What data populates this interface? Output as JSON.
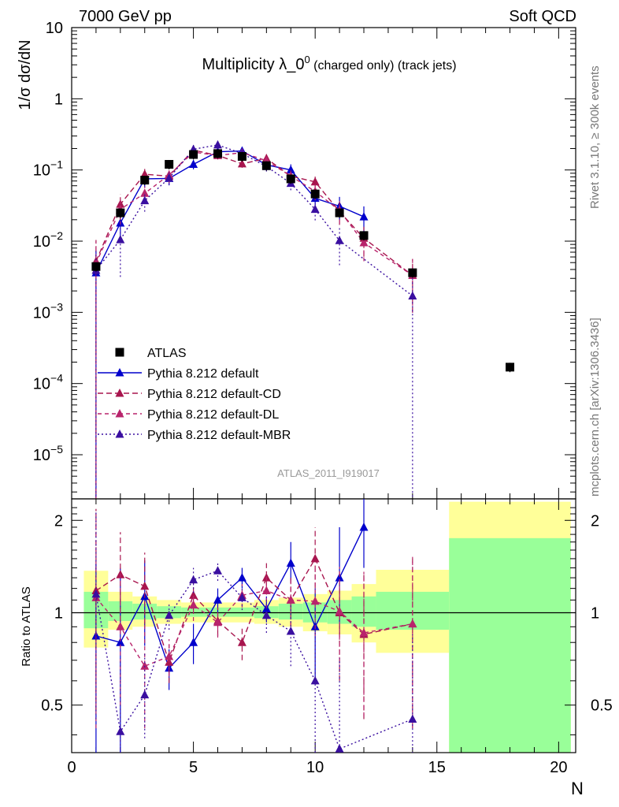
{
  "header": {
    "left": "7000 GeV pp",
    "right": "Soft QCD"
  },
  "side_labels": {
    "rivet": "Rivet 3.1.10, ≥ 300k events",
    "source": "mcplots.cern.ch [arXiv:1306.3436]"
  },
  "reference": "ATLAS_2011_I919017",
  "colors": {
    "default": "#0000cc",
    "cd": "#a8154e",
    "dl": "#b8246c",
    "mbr": "#3a0fa0",
    "band_inner": "#99ff99",
    "band_outer": "#ffff99"
  },
  "chart_data": [
    {
      "type": "line",
      "title_main": "Multiplicity λ_0",
      "title_sup": "0",
      "title_rest": " (charged only) (track jets)",
      "xlabel": "N",
      "ylabel": "1/σ dσ/dN",
      "yscale": "log",
      "xlim": [
        0,
        20.7
      ],
      "ylim": [
        2.4e-06,
        10
      ],
      "x_ticks": [
        0,
        5,
        10,
        15,
        20
      ],
      "y_ticks": [
        {
          "value": 1e-05,
          "base": "10",
          "exp": "−5"
        },
        {
          "value": 0.0001,
          "base": "10",
          "exp": "−4"
        },
        {
          "value": 0.001,
          "base": "10",
          "exp": "−3"
        },
        {
          "value": 0.01,
          "base": "10",
          "exp": "−2"
        },
        {
          "value": 0.1,
          "base": "10",
          "exp": "−1"
        },
        {
          "value": 1,
          "base": "1",
          "exp": ""
        },
        {
          "value": 10,
          "base": "10",
          "exp": ""
        }
      ],
      "legend": [
        {
          "label": "ATLAS",
          "series": "atlas"
        },
        {
          "label": "Pythia 8.212 default",
          "series": "default"
        },
        {
          "label": "Pythia 8.212 default-CD",
          "series": "cd"
        },
        {
          "label": "Pythia 8.212 default-DL",
          "series": "dl"
        },
        {
          "label": "Pythia 8.212 default-MBR",
          "series": "mbr"
        }
      ],
      "atlas": {
        "name": "ATLAS",
        "x": [
          1,
          2,
          3,
          4,
          5,
          6,
          7,
          8,
          9,
          10,
          11,
          12,
          14,
          18
        ],
        "y": [
          0.0044,
          0.025,
          0.072,
          0.12,
          0.165,
          0.17,
          0.155,
          0.115,
          0.075,
          0.046,
          0.025,
          0.012,
          0.0036,
          0.00017
        ]
      },
      "series": [
        {
          "key": "default",
          "name": "Pythia 8.212 default",
          "dash": "",
          "x": [
            1,
            2,
            3,
            4,
            5,
            6,
            7,
            8,
            9,
            10,
            11,
            12
          ],
          "y": [
            0.0036,
            0.018,
            0.075,
            0.076,
            0.12,
            0.18,
            0.185,
            0.118,
            0.1,
            0.04,
            0.031,
            0.022
          ],
          "err": [
            1.0,
            0.45,
            0.25,
            0.2,
            0.15,
            0.12,
            0.12,
            0.15,
            0.2,
            0.25,
            0.35,
            0.4
          ]
        },
        {
          "key": "cd",
          "name": "Pythia 8.212 default-CD",
          "dash": "7,4",
          "x": [
            1,
            2,
            3,
            4,
            5,
            6,
            7,
            8,
            9,
            10,
            11,
            12,
            14
          ],
          "y": [
            0.0052,
            0.033,
            0.087,
            0.082,
            0.19,
            0.16,
            0.122,
            0.145,
            0.082,
            0.068,
            0.026,
            0.011,
            0.0033
          ],
          "err": [
            1.0,
            0.4,
            0.25,
            0.2,
            0.15,
            0.12,
            0.12,
            0.15,
            0.2,
            0.25,
            0.35,
            0.45,
            0.7
          ]
        },
        {
          "key": "dl",
          "name": "Pythia 8.212 default-DL",
          "dash": "5,4",
          "x": [
            1,
            2,
            3,
            4,
            5,
            6,
            7,
            8,
            9,
            10,
            11,
            12,
            14
          ],
          "y": [
            0.0049,
            0.028,
            0.047,
            0.085,
            0.178,
            0.16,
            0.175,
            0.135,
            0.082,
            0.05,
            0.027,
            0.0095,
            0.0033
          ],
          "err": [
            1.0,
            0.4,
            0.25,
            0.2,
            0.15,
            0.12,
            0.12,
            0.15,
            0.2,
            0.25,
            0.35,
            0.45,
            0.7
          ]
        },
        {
          "key": "mbr",
          "name": "Pythia 8.212 default-MBR",
          "dash": "2,3",
          "x": [
            1,
            2,
            3,
            4,
            5,
            6,
            7,
            8,
            9,
            10,
            11,
            14
          ],
          "y": [
            0.0039,
            0.0105,
            0.037,
            0.077,
            0.195,
            0.225,
            0.17,
            0.112,
            0.065,
            0.028,
            0.0102,
            0.0017
          ],
          "err": [
            1.0,
            0.7,
            0.3,
            0.2,
            0.15,
            0.12,
            0.12,
            0.15,
            0.2,
            0.3,
            0.55,
            1.0
          ]
        }
      ]
    },
    {
      "type": "line",
      "xlabel": "N",
      "ylabel": "Ratio to ATLAS",
      "xlim": [
        0,
        20.7
      ],
      "ylim": [
        0.35,
        2.35
      ],
      "x_ticks": [
        0,
        5,
        10,
        15,
        20
      ],
      "y_ticks": [
        0.5,
        1,
        2
      ],
      "y_tick_labels": [
        "0.5",
        "1",
        "2"
      ],
      "bands": [
        {
          "x0": 0.5,
          "x1": 1.5,
          "inner": [
            0.89,
            1.17
          ],
          "outer": [
            0.77,
            1.37
          ]
        },
        {
          "x0": 1.5,
          "x1": 2.5,
          "inner": [
            0.94,
            1.09
          ],
          "outer": [
            0.88,
            1.17
          ]
        },
        {
          "x0": 2.5,
          "x1": 3.5,
          "inner": [
            0.95,
            1.07
          ],
          "outer": [
            0.9,
            1.13
          ]
        },
        {
          "x0": 3.5,
          "x1": 4.5,
          "inner": [
            0.96,
            1.05
          ],
          "outer": [
            0.92,
            1.1
          ]
        },
        {
          "x0": 4.5,
          "x1": 5.5,
          "inner": [
            0.97,
            1.04
          ],
          "outer": [
            0.93,
            1.08
          ]
        },
        {
          "x0": 5.5,
          "x1": 6.5,
          "inner": [
            0.97,
            1.04
          ],
          "outer": [
            0.93,
            1.08
          ]
        },
        {
          "x0": 6.5,
          "x1": 7.5,
          "inner": [
            0.97,
            1.04
          ],
          "outer": [
            0.93,
            1.08
          ]
        },
        {
          "x0": 7.5,
          "x1": 8.5,
          "inner": [
            0.96,
            1.05
          ],
          "outer": [
            0.92,
            1.1
          ]
        },
        {
          "x0": 8.5,
          "x1": 9.5,
          "inner": [
            0.95,
            1.07
          ],
          "outer": [
            0.9,
            1.12
          ]
        },
        {
          "x0": 9.5,
          "x1": 10.5,
          "inner": [
            0.93,
            1.08
          ],
          "outer": [
            0.87,
            1.15
          ]
        },
        {
          "x0": 10.5,
          "x1": 11.5,
          "inner": [
            0.92,
            1.1
          ],
          "outer": [
            0.85,
            1.18
          ]
        },
        {
          "x0": 11.5,
          "x1": 12.5,
          "inner": [
            0.9,
            1.13
          ],
          "outer": [
            0.8,
            1.24
          ]
        },
        {
          "x0": 12.5,
          "x1": 15.5,
          "inner": [
            0.88,
            1.17
          ],
          "outer": [
            0.74,
            1.38
          ]
        },
        {
          "x0": 15.5,
          "x1": 20.5,
          "inner": [
            0.35,
            1.75
          ],
          "outer": [
            0.35,
            2.3
          ]
        }
      ],
      "series": [
        {
          "key": "default",
          "name": "Pythia 8.212 default",
          "dash": "",
          "x": [
            1,
            2,
            3,
            4,
            5,
            6,
            7,
            8,
            9,
            10,
            11,
            12
          ],
          "y": [
            0.84,
            0.8,
            1.13,
            0.66,
            0.8,
            1.1,
            1.3,
            1.03,
            1.45,
            0.9,
            1.3,
            1.9
          ],
          "err_low": [
            0.5,
            0.45,
            0.35,
            0.1,
            0.12,
            0.1,
            0.1,
            0.1,
            0.2,
            0.3,
            0.45,
            0.5
          ],
          "err_high": [
            0.6,
            0.6,
            0.35,
            0.1,
            0.12,
            0.1,
            0.1,
            0.1,
            0.25,
            0.3,
            0.6,
            0.9
          ]
        },
        {
          "key": "cd",
          "name": "Pythia 8.212 default-CD",
          "dash": "7,4",
          "x": [
            1,
            2,
            3,
            4,
            5,
            6,
            7,
            8,
            9,
            10,
            11,
            12,
            14
          ],
          "y": [
            1.18,
            1.33,
            1.22,
            0.69,
            1.14,
            0.94,
            0.8,
            1.3,
            1.1,
            1.5,
            1.0,
            0.85,
            0.92
          ],
          "err_low": [
            0.7,
            0.45,
            0.3,
            0.1,
            0.12,
            0.1,
            0.1,
            0.15,
            0.2,
            0.3,
            0.4,
            0.4,
            0.5
          ],
          "err_high": [
            1.0,
            0.5,
            0.35,
            0.1,
            0.12,
            0.1,
            0.1,
            0.15,
            0.2,
            0.4,
            0.4,
            0.5,
            0.6
          ]
        },
        {
          "key": "dl",
          "name": "Pythia 8.212 default-DL",
          "dash": "5,4",
          "x": [
            1,
            2,
            3,
            4,
            5,
            6,
            7,
            8,
            9,
            10,
            11,
            12,
            14
          ],
          "y": [
            1.12,
            0.9,
            0.67,
            0.72,
            1.06,
            0.93,
            1.14,
            1.18,
            1.1,
            1.09,
            1.01,
            0.86,
            0.92
          ],
          "err_low": [
            0.7,
            0.4,
            0.25,
            0.1,
            0.12,
            0.1,
            0.1,
            0.15,
            0.2,
            0.25,
            0.35,
            0.4,
            0.5
          ],
          "err_high": [
            1.0,
            0.45,
            0.3,
            0.1,
            0.12,
            0.1,
            0.1,
            0.15,
            0.2,
            0.3,
            0.4,
            0.5,
            0.6
          ]
        },
        {
          "key": "mbr",
          "name": "Pythia 8.212 default-MBR",
          "dash": "2,3",
          "x": [
            1,
            2,
            3,
            4,
            5,
            6,
            7,
            8,
            9,
            10,
            11,
            14
          ],
          "y": [
            1.15,
            0.41,
            0.54,
            0.98,
            1.28,
            1.37,
            1.12,
            0.98,
            0.87,
            0.6,
            0.36,
            0.45
          ],
          "err_low": [
            0.7,
            0.2,
            0.15,
            0.1,
            0.12,
            0.1,
            0.1,
            0.12,
            0.2,
            0.25,
            0.2,
            0.3
          ],
          "err_high": [
            1.0,
            0.3,
            0.2,
            0.1,
            0.12,
            0.1,
            0.1,
            0.12,
            0.2,
            0.3,
            0.35,
            0.4
          ]
        }
      ]
    }
  ]
}
